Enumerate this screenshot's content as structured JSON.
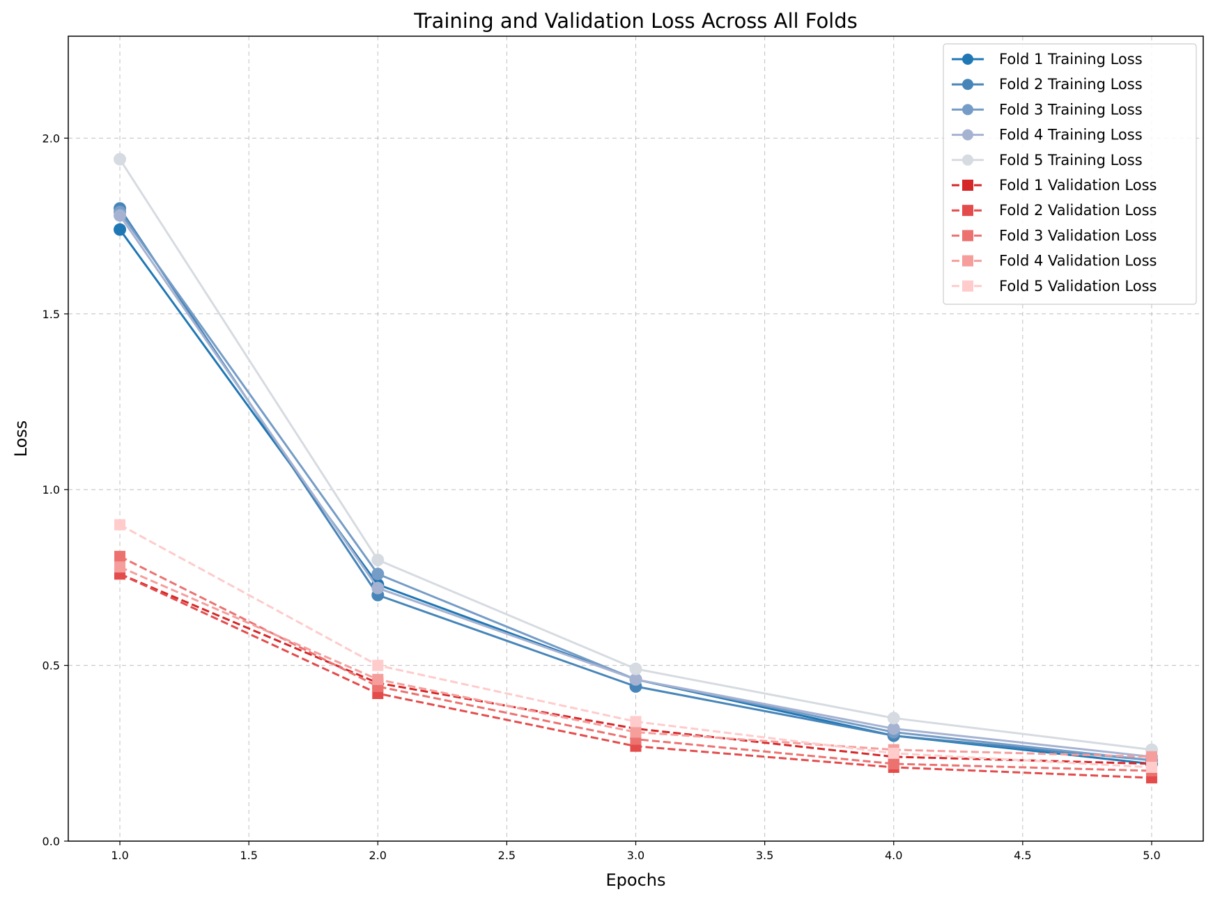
{
  "chart_data": {
    "type": "line",
    "title": "Training and Validation Loss Across All Folds",
    "xlabel": "Epochs",
    "ylabel": "Loss",
    "xlim": [
      0.8,
      5.2
    ],
    "ylim": [
      0.0,
      2.29
    ],
    "xticks": [
      "1.0",
      "1.5",
      "2.0",
      "2.5",
      "3.0",
      "3.5",
      "4.0",
      "4.5",
      "5.0"
    ],
    "yticks": [
      "0.0",
      "0.5",
      "1.0",
      "1.5",
      "2.0"
    ],
    "grid": true,
    "legend_position": "top-right",
    "x": [
      1,
      2,
      3,
      4,
      5
    ],
    "series": [
      {
        "name": "Fold 1 Training Loss",
        "values": [
          1.74,
          0.73,
          0.46,
          0.3,
          0.22
        ],
        "color": "#1f77b4",
        "style": "solid",
        "marker": "circle"
      },
      {
        "name": "Fold 2 Training Loss",
        "values": [
          1.8,
          0.7,
          0.44,
          0.3,
          0.23
        ],
        "color": "#4785b8",
        "style": "solid",
        "marker": "circle"
      },
      {
        "name": "Fold 3 Training Loss",
        "values": [
          1.79,
          0.76,
          0.46,
          0.31,
          0.23
        ],
        "color": "#759cc6",
        "style": "solid",
        "marker": "circle"
      },
      {
        "name": "Fold 4 Training Loss",
        "values": [
          1.78,
          0.72,
          0.46,
          0.32,
          0.24
        ],
        "color": "#a5b2d1",
        "style": "solid",
        "marker": "circle"
      },
      {
        "name": "Fold 5 Training Loss",
        "values": [
          1.94,
          0.8,
          0.49,
          0.35,
          0.26
        ],
        "color": "#d6dbe1",
        "style": "solid",
        "marker": "circle"
      },
      {
        "name": "Fold 1 Validation Loss",
        "values": [
          0.76,
          0.45,
          0.32,
          0.24,
          0.22
        ],
        "color": "#d62728",
        "style": "dashed",
        "marker": "square"
      },
      {
        "name": "Fold 2 Validation Loss",
        "values": [
          0.76,
          0.42,
          0.27,
          0.21,
          0.18
        ],
        "color": "#e44b4b",
        "style": "dashed",
        "marker": "square"
      },
      {
        "name": "Fold 3 Validation Loss",
        "values": [
          0.81,
          0.44,
          0.29,
          0.22,
          0.2
        ],
        "color": "#ec7270",
        "style": "dashed",
        "marker": "square"
      },
      {
        "name": "Fold 4 Validation Loss",
        "values": [
          0.78,
          0.46,
          0.31,
          0.26,
          0.24
        ],
        "color": "#f59e9c",
        "style": "dashed",
        "marker": "square"
      },
      {
        "name": "Fold 5 Validation Loss",
        "values": [
          0.9,
          0.5,
          0.34,
          0.25,
          0.21
        ],
        "color": "#ffcbcb",
        "style": "dashed",
        "marker": "square"
      }
    ]
  }
}
